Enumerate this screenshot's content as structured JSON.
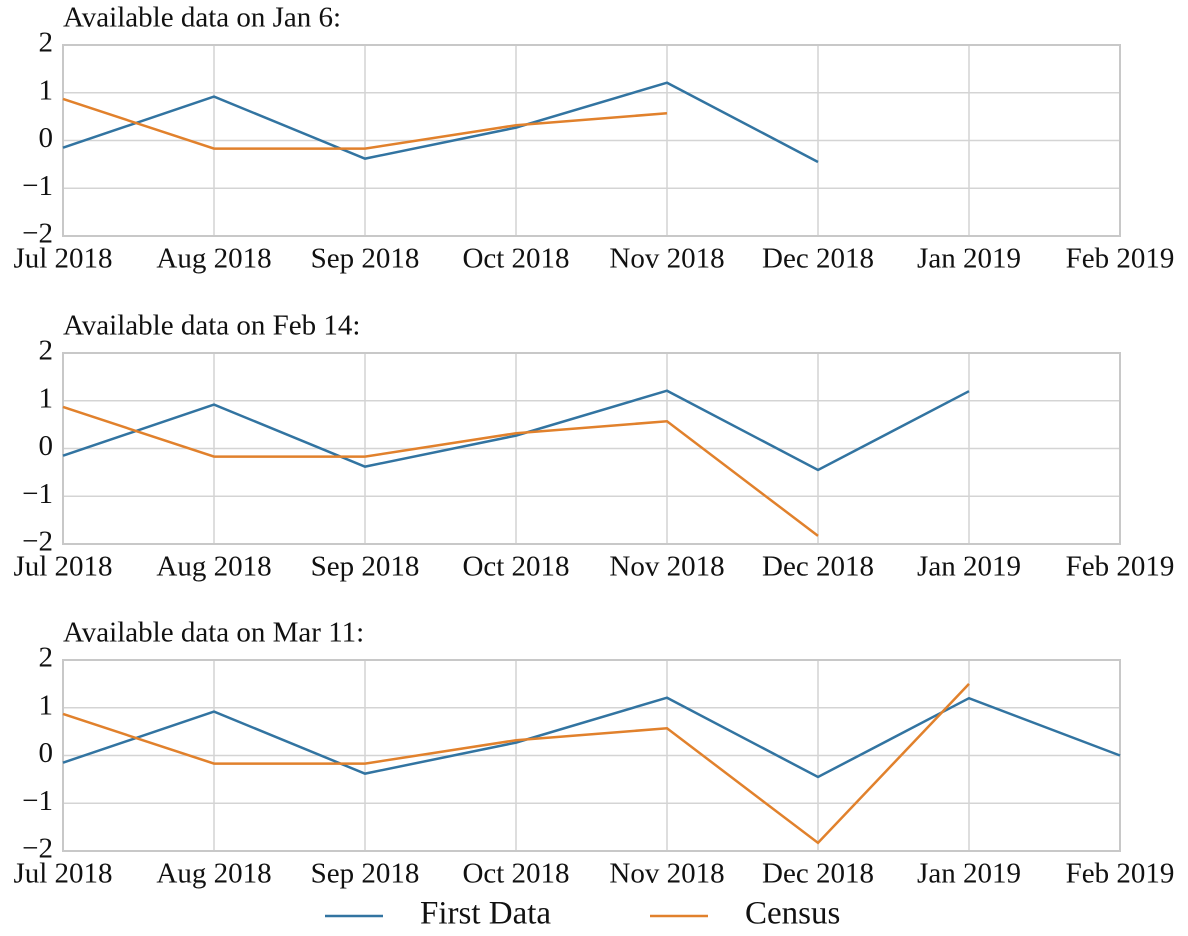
{
  "chart_data": [
    {
      "type": "line",
      "title": "Available data on Jan 6:",
      "categories": [
        "Jul 2018",
        "Aug 2018",
        "Sep 2018",
        "Oct 2018",
        "Nov 2018",
        "Dec 2018",
        "Jan 2019",
        "Feb 2019"
      ],
      "series": [
        {
          "name": "First Data",
          "color": "#3274a1",
          "values": [
            -0.15,
            0.92,
            -0.38,
            0.27,
            1.21,
            -0.45,
            null,
            null
          ]
        },
        {
          "name": "Census",
          "color": "#e1812c",
          "values": [
            0.87,
            -0.17,
            -0.17,
            0.32,
            0.57,
            null,
            null,
            null
          ]
        }
      ],
      "ylim": [
        -2,
        2
      ],
      "yticks": [
        {
          "value": -2,
          "label": "−2"
        },
        {
          "value": -1,
          "label": "−1"
        },
        0,
        1,
        2
      ],
      "grid": true
    },
    {
      "type": "line",
      "title": "Available data on Feb 14:",
      "categories": [
        "Jul 2018",
        "Aug 2018",
        "Sep 2018",
        "Oct 2018",
        "Nov 2018",
        "Dec 2018",
        "Jan 2019",
        "Feb 2019"
      ],
      "series": [
        {
          "color": "#3274a1",
          "values": [
            -0.15,
            0.92,
            -0.38,
            0.27,
            1.21,
            -0.45,
            1.2,
            null
          ]
        },
        {
          "color": "#e1812c",
          "values": [
            0.87,
            -0.17,
            -0.17,
            0.32,
            0.57,
            -1.83,
            null,
            null
          ]
        }
      ],
      "ylim": [
        -2,
        2
      ],
      "yticks": [
        {
          "value": -2,
          "label": "−2"
        },
        {
          "value": -1,
          "label": "−1"
        },
        0,
        1,
        2
      ],
      "grid": true
    },
    {
      "type": "line",
      "title": "Available data on Mar 11:",
      "categories": [
        "Jul 2018",
        "Aug 2018",
        "Sep 2018",
        "Oct 2018",
        "Nov 2018",
        "Dec 2018",
        "Jan 2019",
        "Feb 2019"
      ],
      "series": [
        {
          "color": "#3274a1",
          "values": [
            -0.15,
            0.92,
            -0.38,
            0.27,
            1.21,
            -0.45,
            1.2,
            0
          ]
        },
        {
          "color": "#e1812c",
          "values": [
            0.87,
            -0.17,
            -0.17,
            0.32,
            0.57,
            -1.83,
            1.5,
            null
          ]
        }
      ],
      "ylim": [
        -2,
        2
      ],
      "yticks": [
        {
          "value": -2,
          "label": "−2"
        },
        {
          "value": -1,
          "label": "−1"
        },
        0,
        1,
        2
      ],
      "grid": true
    }
  ]
}
